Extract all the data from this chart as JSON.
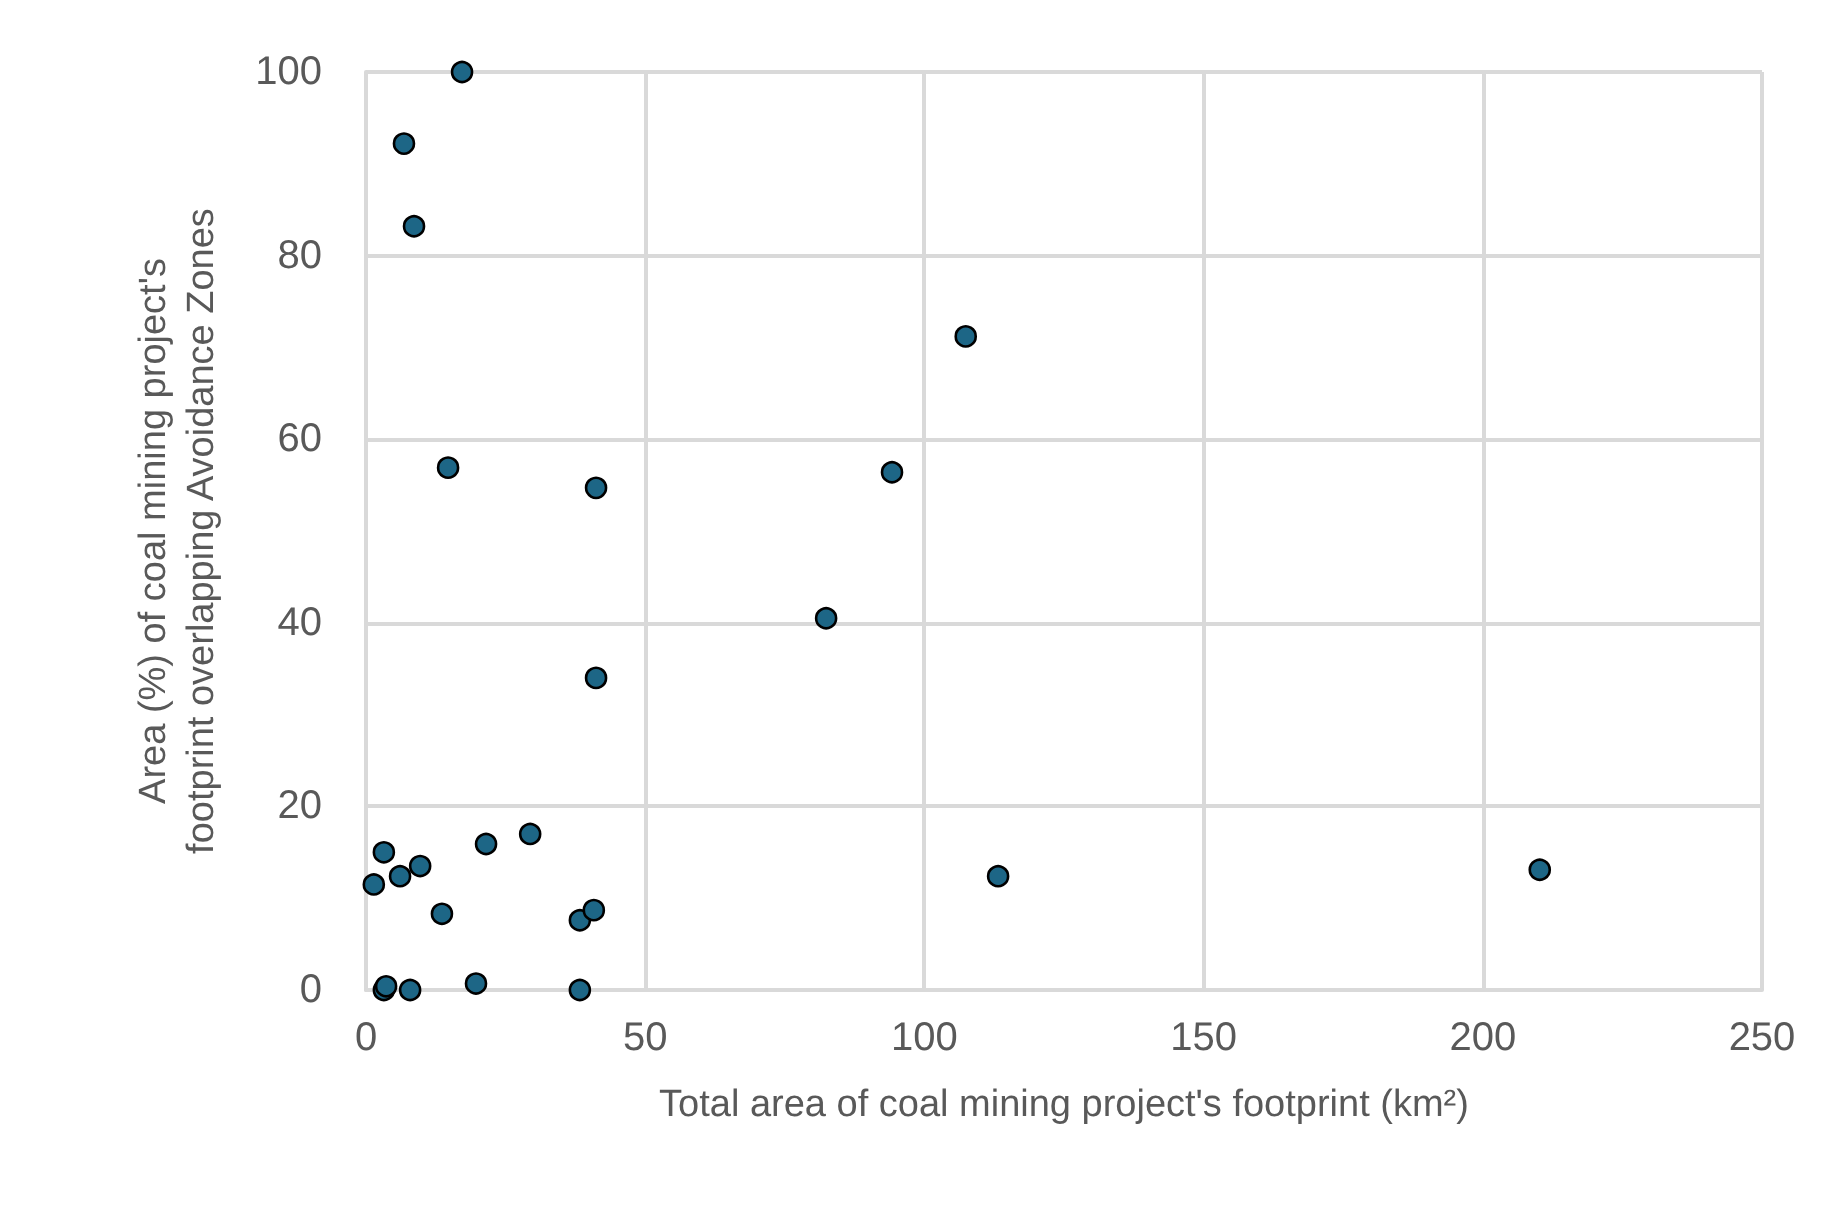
{
  "chart_data": {
    "type": "scatter",
    "xlabel": "Total area of coal mining project's footprint (km²)",
    "ylabel": "Area (%) of coal mining project's footprint overlapping Avoidance Zones",
    "x": [
      17.2,
      6.8,
      8.6,
      107.4,
      14.7,
      41.2,
      94.2,
      82.4,
      41.2,
      3.2,
      21.5,
      29.4,
      6.1,
      9.7,
      1.4,
      13.6,
      38.3,
      40.8,
      113.2,
      210.2,
      3.2,
      3.6,
      7.9,
      19.7,
      38.3
    ],
    "series": [
      {
        "color": "#1d6686",
        "values": [
          100,
          92.2,
          83.2,
          71.2,
          56.9,
          54.7,
          56.4,
          40.5,
          34.0,
          15.0,
          15.9,
          17.0,
          12.4,
          13.5,
          11.5,
          8.3,
          7.6,
          8.7,
          12.4,
          13.1,
          0,
          0.4,
          0,
          0.7,
          0
        ]
      }
    ],
    "xlim": [
      0,
      250
    ],
    "xticks": [
      0,
      50,
      100,
      150,
      200,
      250
    ],
    "ylim": [
      0,
      100
    ],
    "yticks": [
      0,
      20,
      40,
      60,
      80,
      100
    ],
    "grid": true,
    "marker": "circle"
  }
}
